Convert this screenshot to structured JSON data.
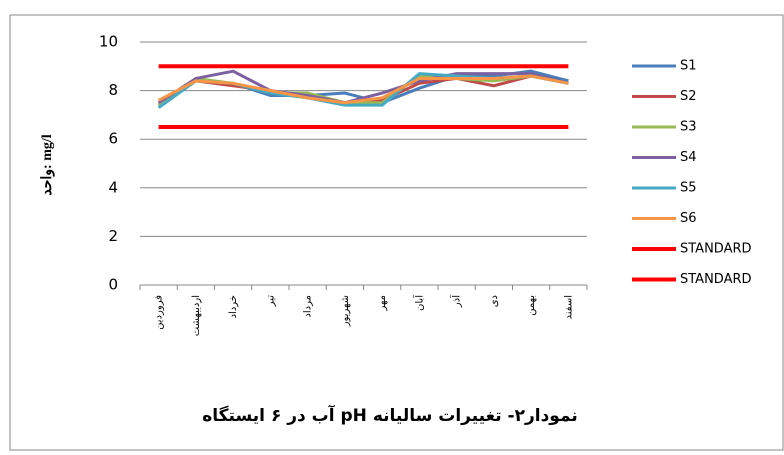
{
  "chart_data": {
    "type": "line",
    "title": "نمودار۲- تغییرات سالیانه pH آب در ۶ ایستگاه",
    "y_label": "واحد: mg/l",
    "categories": [
      "فروردین",
      "اردیبهشت",
      "خرداد",
      "تیر",
      "مرداد",
      "شهریور",
      "مهر",
      "آبان",
      "آذر",
      "دی",
      "بهمن",
      "اسفند"
    ],
    "series": [
      {
        "name": "S1",
        "color": "#4a7ebb",
        "values": [
          7.4,
          8.4,
          8.3,
          7.8,
          7.8,
          7.9,
          7.5,
          8.1,
          8.6,
          8.6,
          8.8,
          8.4
        ]
      },
      {
        "name": "S2",
        "color": "#be4b48",
        "values": [
          7.5,
          8.4,
          8.2,
          8.0,
          7.7,
          7.5,
          7.6,
          8.3,
          8.5,
          8.2,
          8.6,
          8.3
        ]
      },
      {
        "name": "S3",
        "color": "#98b954",
        "values": [
          7.4,
          8.5,
          8.3,
          7.9,
          7.9,
          7.5,
          7.5,
          8.6,
          8.5,
          8.4,
          8.6,
          8.3
        ]
      },
      {
        "name": "S4",
        "color": "#7d60a0",
        "values": [
          7.5,
          8.5,
          8.8,
          8.0,
          7.8,
          7.5,
          7.9,
          8.4,
          8.7,
          8.7,
          8.7,
          8.3
        ]
      },
      {
        "name": "S5",
        "color": "#46aac5",
        "values": [
          7.3,
          8.4,
          8.3,
          7.9,
          7.7,
          7.4,
          7.4,
          8.7,
          8.6,
          8.5,
          8.6,
          8.3
        ]
      },
      {
        "name": "S6",
        "color": "#f79646",
        "values": [
          7.6,
          8.4,
          8.3,
          8.0,
          7.7,
          7.5,
          7.7,
          8.5,
          8.5,
          8.5,
          8.6,
          8.3
        ]
      },
      {
        "name": "STANDARD",
        "color": "#ff0000",
        "values": [
          9,
          9,
          9,
          9,
          9,
          9,
          9,
          9,
          9,
          9,
          9,
          9
        ]
      },
      {
        "name": "STANDARD",
        "color": "#ff0000",
        "values": [
          6.5,
          6.5,
          6.5,
          6.5,
          6.5,
          6.5,
          6.5,
          6.5,
          6.5,
          6.5,
          6.5,
          6.5
        ]
      }
    ],
    "ylim": [
      0,
      10
    ],
    "yticks": [
      0,
      2,
      4,
      6,
      8,
      10
    ],
    "grid": true
  }
}
